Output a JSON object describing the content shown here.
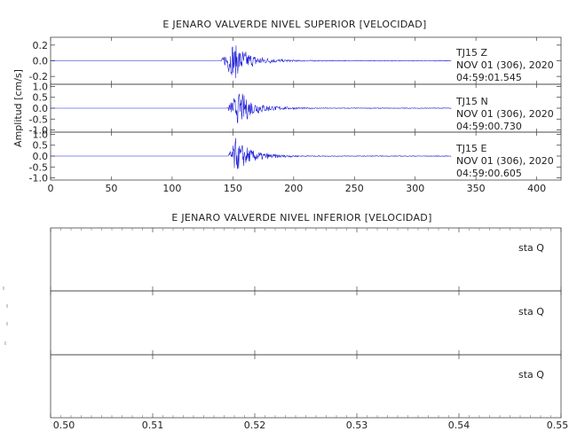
{
  "chart_data": [
    {
      "type": "line",
      "title": "E JENARO VALVERDE NIVEL SUPERIOR [VELOCIDAD]",
      "ylabel": "Amplitud [cm/s]",
      "xlabel": "",
      "xlim": [
        0,
        420
      ],
      "x_ticks": [
        0,
        50,
        100,
        150,
        200,
        250,
        300,
        350,
        400
      ],
      "x_tick_labels": [
        "0",
        "50",
        "100",
        "150",
        "200",
        "250",
        "300",
        "350",
        "400"
      ],
      "color": "#1f1fd6",
      "grid": false,
      "panels": [
        {
          "component": "Z",
          "station": "TJ15",
          "channel_label": "TJ15   Z",
          "date_label": "NOV 01 (306), 2020",
          "time_label": "04:59:01.545",
          "ylim": [
            -0.3,
            0.3
          ],
          "y_ticks": [
            0.2,
            0.0,
            -0.2
          ],
          "y_tick_labels": [
            "0.2",
            "0.0",
            "-0.2"
          ],
          "signal_start": 140,
          "signal_end": 330,
          "peak_time": 150,
          "peak_amplitude": 0.26
        },
        {
          "component": "N",
          "station": "TJ15",
          "channel_label": "TJ15   N",
          "date_label": "NOV 01 (306), 2020",
          "time_label": "04:59:00.730",
          "ylim": [
            -1.1,
            1.1
          ],
          "y_ticks": [
            1.0,
            0.5,
            0.0,
            -0.5,
            -1.0
          ],
          "y_tick_labels": [
            "1.0",
            "0.5",
            "0.0",
            "-0.5",
            "-1.0"
          ],
          "signal_start": 145,
          "signal_end": 330,
          "peak_time": 155,
          "peak_amplitude": 0.85
        },
        {
          "component": "E",
          "station": "TJ15",
          "channel_label": "TJ15   E",
          "date_label": "NOV 01 (306), 2020",
          "time_label": "04:59:00.605",
          "ylim": [
            -1.1,
            1.1
          ],
          "y_ticks": [
            1.0,
            0.5,
            0.0,
            -0.5,
            -1.0
          ],
          "y_tick_labels": [
            "1.0",
            "0.5",
            "0.0",
            "-0.5",
            "-1.0"
          ],
          "signal_start": 146,
          "signal_end": 330,
          "peak_time": 151,
          "peak_amplitude": 0.9
        }
      ]
    },
    {
      "type": "line",
      "title": "E JENARO VALVERDE NIVEL INFERIOR [VELOCIDAD]",
      "ylabel": "",
      "xlabel": "",
      "xlim": [
        0.5,
        0.55
      ],
      "x_ticks": [
        0.5,
        0.51,
        0.52,
        0.53,
        0.54,
        0.55
      ],
      "x_tick_labels": [
        "0.50",
        "0.51",
        "0.52",
        "0.53",
        "0.54",
        "0.55"
      ],
      "grid": false,
      "panels": [
        {
          "channel_label": "sta   Q",
          "values": []
        },
        {
          "channel_label": "sta   Q",
          "values": []
        },
        {
          "channel_label": "sta   Q",
          "values": []
        }
      ]
    }
  ]
}
